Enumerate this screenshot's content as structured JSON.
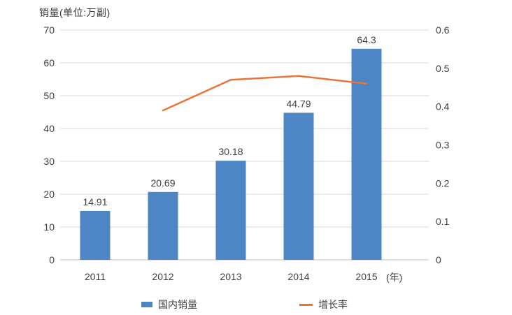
{
  "chart": {
    "title": "销量(单位:万副)",
    "x_axis_suffix": "(年)",
    "legend": [
      {
        "label": "国内销量",
        "swatch": "bar-swatch"
      },
      {
        "label": "增长率",
        "swatch": "line-swatch"
      }
    ],
    "colors": {
      "bar": "#4E86C5",
      "line": "#E97439",
      "grid": "#D9D9D9",
      "axis": "#C0C0C0",
      "text": "#3F3F3F"
    }
  },
  "chart_data": {
    "type": "combo",
    "title": "销量(单位:万副)",
    "xlabel": "(年)",
    "categories": [
      "2011",
      "2012",
      "2013",
      "2014",
      "2015"
    ],
    "series": [
      {
        "name": "国内销量",
        "type": "bar",
        "axis": "left",
        "values": [
          14.91,
          20.69,
          30.18,
          44.79,
          64.3
        ],
        "labels": [
          "14.91",
          "20.69",
          "30.18",
          "44.79",
          "64.3"
        ]
      },
      {
        "name": "增长率",
        "type": "line",
        "axis": "right",
        "values": [
          null,
          0.39,
          0.47,
          0.48,
          0.46
        ]
      }
    ],
    "left_axis": {
      "min": 0,
      "max": 70,
      "step": 10,
      "ticks": [
        "0",
        "10",
        "20",
        "30",
        "40",
        "50",
        "60",
        "70"
      ]
    },
    "right_axis": {
      "min": 0,
      "max": 0.6,
      "step": 0.1,
      "ticks": [
        "0",
        "0.1",
        "0.2",
        "0.3",
        "0.4",
        "0.5",
        "0.6"
      ]
    },
    "grid": true,
    "legend_position": "bottom"
  }
}
